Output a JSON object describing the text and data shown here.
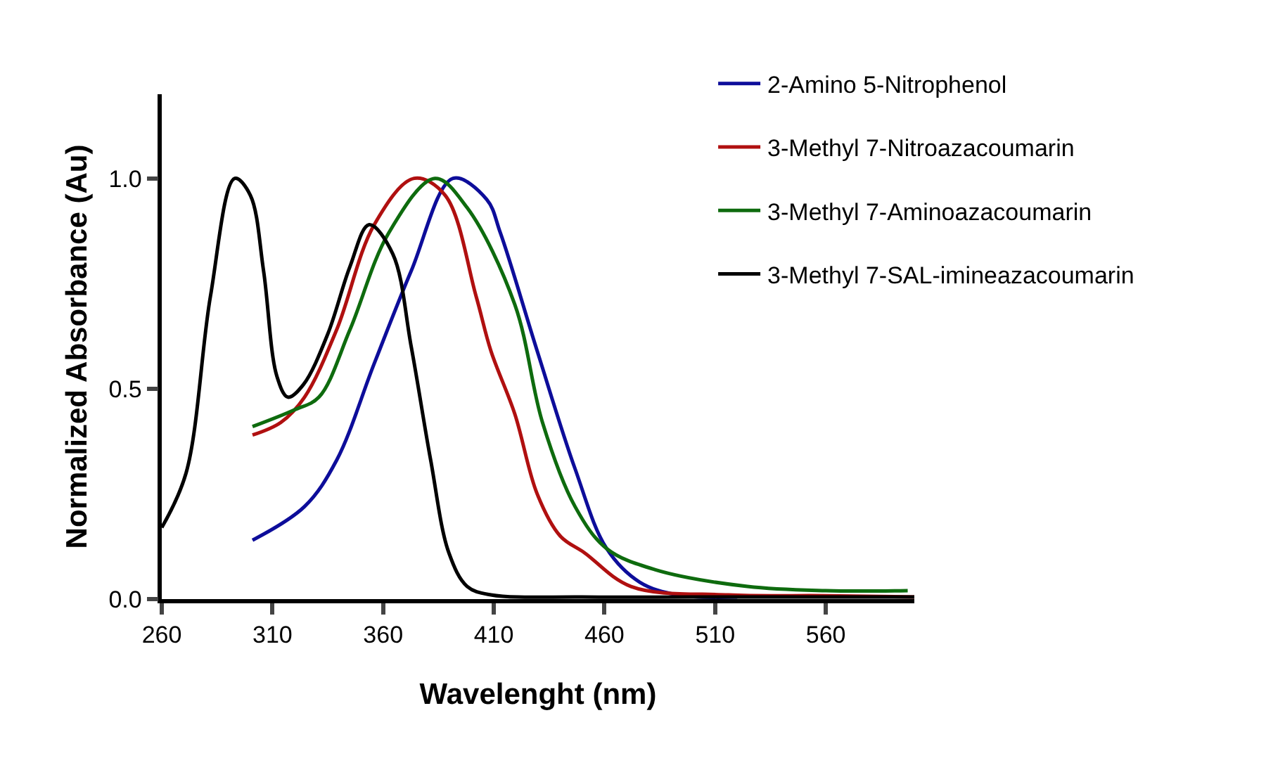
{
  "chart_data": {
    "type": "line",
    "xlabel": "Wavelenght (nm)",
    "ylabel": "Normalized Absorbance (Au)",
    "xlim": [
      260,
      600
    ],
    "xticks": [
      260,
      310,
      360,
      410,
      460,
      510,
      560
    ],
    "ylim": [
      0,
      1.2
    ],
    "yticks": [
      {
        "value": 0,
        "label": "0.0"
      },
      {
        "value": 0.5,
        "label": "0.5"
      },
      {
        "value": 1,
        "label": "1.0"
      }
    ],
    "grid": false,
    "legend": "top right",
    "marker": "none",
    "line_style": "solid",
    "series": [
      {
        "name": "2-Amino 5-Nitrophenol",
        "color": "#0d0d9a",
        "x": [
          301,
          324.5,
          339,
          356,
          372.7,
          391.6,
          406.8,
          413,
          429.6,
          446.7,
          461,
          476,
          493,
          520
        ],
        "values": [
          0.14,
          0.22,
          0.33,
          0.56,
          0.78,
          1.0,
          0.95,
          0.87,
          0.59,
          0.31,
          0.12,
          0.04,
          0.01,
          0.005
        ]
      },
      {
        "name": "3-Methyl 7-Nitroazacoumarin",
        "color": "#b01010",
        "x": [
          301,
          313.8,
          324.5,
          339,
          356,
          374,
          388,
          402,
          408.7,
          419.5,
          429.6,
          440,
          451,
          472,
          516,
          560,
          600
        ],
        "values": [
          0.39,
          0.42,
          0.48,
          0.64,
          0.89,
          1.0,
          0.96,
          0.72,
          0.59,
          0.44,
          0.25,
          0.15,
          0.11,
          0.03,
          0.01,
          0.008,
          0.005
        ]
      },
      {
        "name": "3-Methyl 7-Aminoazacoumarin",
        "color": "#0e6b0e",
        "x": [
          301,
          320,
          331,
          345,
          362.5,
          383.4,
          398,
          419.5,
          432,
          446.7,
          461,
          482.8,
          524.6,
          560,
          597
        ],
        "values": [
          0.41,
          0.45,
          0.48,
          0.64,
          0.87,
          1.0,
          0.93,
          0.7,
          0.42,
          0.22,
          0.12,
          0.07,
          0.03,
          0.02,
          0.02
        ]
      },
      {
        "name": "3-Methyl 7-SAL-imineazacoumarin",
        "color": "#000000",
        "x": [
          260,
          271,
          282,
          293,
          300,
          306,
          312,
          317,
          324,
          335,
          345,
          353.7,
          364.4,
          372.7,
          381.5,
          389.7,
          398,
          408.7,
          450,
          500,
          550,
          600
        ],
        "values": [
          0.17,
          0.3,
          0.72,
          1.0,
          0.96,
          0.78,
          0.53,
          0.48,
          0.51,
          0.63,
          0.79,
          0.89,
          0.82,
          0.6,
          0.33,
          0.11,
          0.03,
          0.01,
          0.005,
          0.005,
          0.005,
          0.005
        ]
      }
    ]
  }
}
